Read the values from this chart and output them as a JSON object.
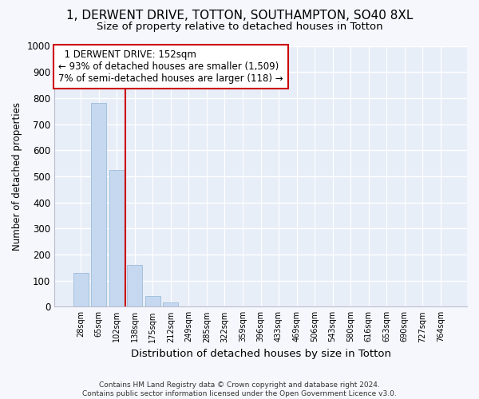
{
  "title": "1, DERWENT DRIVE, TOTTON, SOUTHAMPTON, SO40 8XL",
  "subtitle": "Size of property relative to detached houses in Totton",
  "xlabel": "Distribution of detached houses by size in Totton",
  "ylabel": "Number of detached properties",
  "bar_color": "#c5d8f0",
  "bar_edge_color": "#9bbcd8",
  "background_color": "#e8eef8",
  "grid_color": "#ffffff",
  "categories": [
    "28sqm",
    "65sqm",
    "102sqm",
    "138sqm",
    "175sqm",
    "212sqm",
    "249sqm",
    "285sqm",
    "322sqm",
    "359sqm",
    "396sqm",
    "433sqm",
    "469sqm",
    "506sqm",
    "543sqm",
    "580sqm",
    "616sqm",
    "653sqm",
    "690sqm",
    "727sqm",
    "764sqm"
  ],
  "values": [
    130,
    780,
    525,
    160,
    42,
    15,
    0,
    0,
    0,
    0,
    0,
    0,
    0,
    0,
    0,
    0,
    0,
    0,
    0,
    0,
    0
  ],
  "ylim": [
    0,
    1000
  ],
  "yticks": [
    0,
    100,
    200,
    300,
    400,
    500,
    600,
    700,
    800,
    900,
    1000
  ],
  "property_line_x": 2.5,
  "annotation_text": "  1 DERWENT DRIVE: 152sqm  \n← 93% of detached houses are smaller (1,509)\n7% of semi-detached houses are larger (118) →",
  "annotation_box_color": "#ffffff",
  "annotation_box_edge": "#cc0000",
  "property_line_color": "#cc0000",
  "footer_line1": "Contains HM Land Registry data © Crown copyright and database right 2024.",
  "footer_line2": "Contains public sector information licensed under the Open Government Licence v3.0.",
  "title_fontsize": 11,
  "subtitle_fontsize": 9.5,
  "fig_bg": "#f5f7fc"
}
